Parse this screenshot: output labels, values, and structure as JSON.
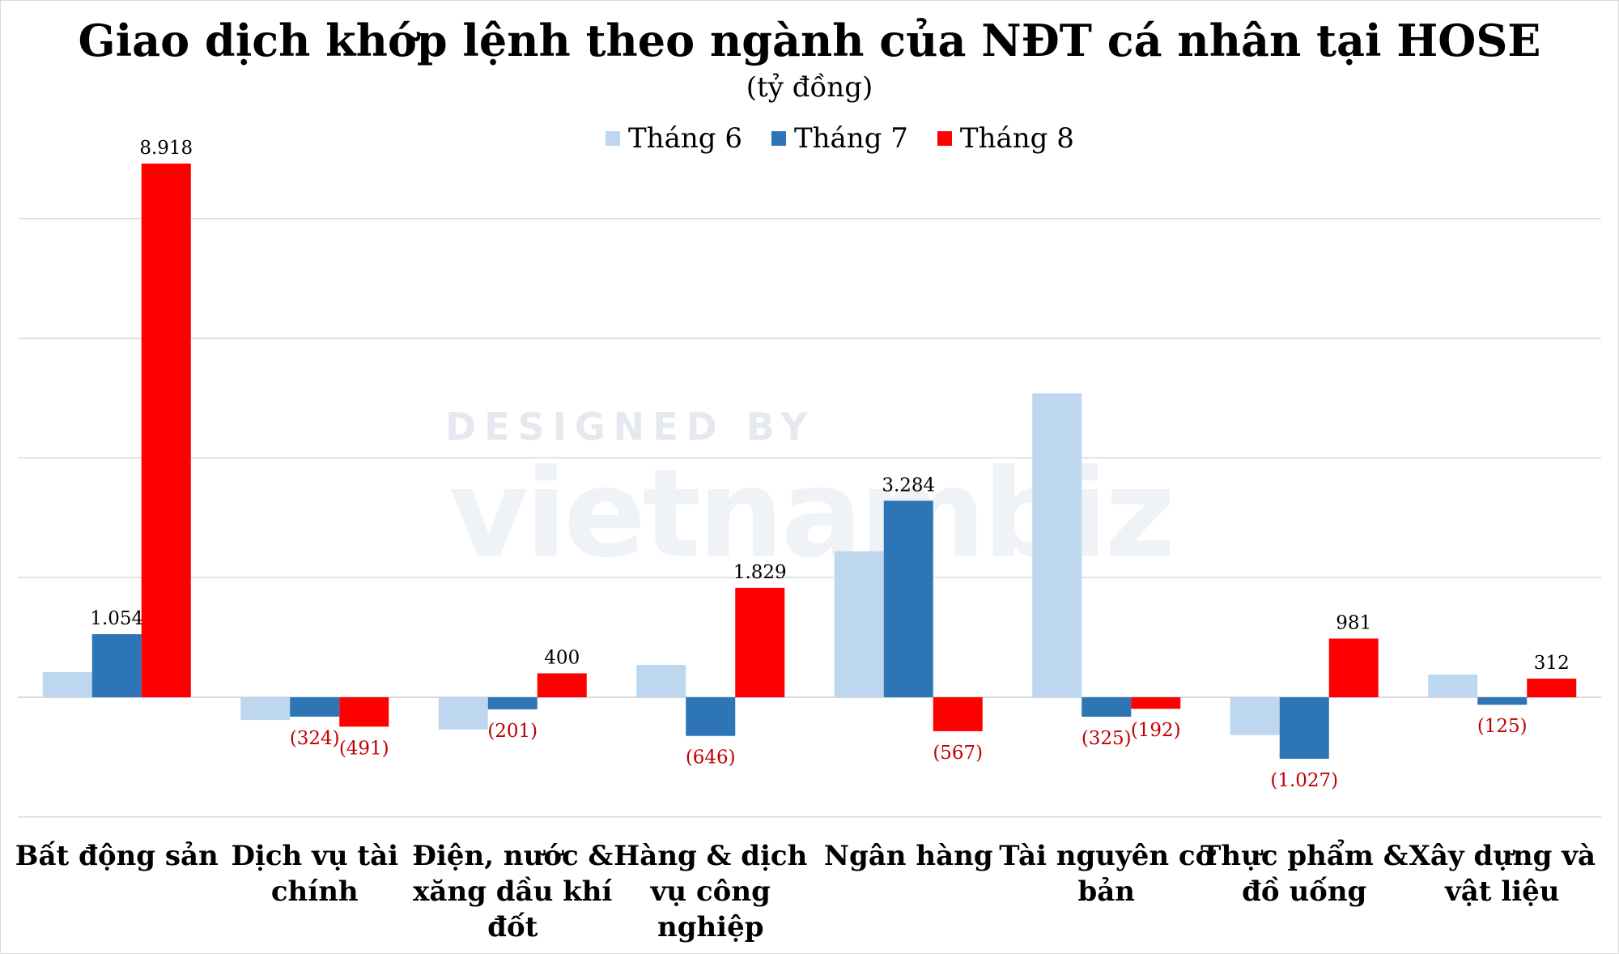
{
  "chart_data": {
    "type": "bar",
    "title": "Giao dịch khớp lệnh theo ngành của NĐT cá nhân tại HOSE",
    "subtitle": "(tỷ đồng)",
    "categories": [
      [
        "Bất động sản"
      ],
      [
        "Dịch vụ tài",
        "chính"
      ],
      [
        "Điện, nước &",
        "xăng dầu khí",
        "đốt"
      ],
      [
        "Hàng & dịch",
        "vụ công",
        "nghiệp"
      ],
      [
        "Ngân hàng"
      ],
      [
        "Tài nguyên cơ",
        "bản"
      ],
      [
        "Thực phẩm &",
        "đồ uống"
      ],
      [
        "Xây dựng và",
        "vật liệu"
      ]
    ],
    "series": [
      {
        "name": "Tháng 6",
        "color": "#bdd7ee",
        "values": [
          420,
          -380,
          -540,
          540,
          2440,
          5080,
          -630,
          380
        ],
        "labels": [
          null,
          null,
          null,
          null,
          null,
          null,
          null,
          null
        ]
      },
      {
        "name": "Tháng 7",
        "color": "#2e75b6",
        "values": [
          1054,
          -324,
          -201,
          -646,
          3284,
          -325,
          -1027,
          -125
        ],
        "labels": [
          "1.054",
          "(324)",
          "(201)",
          "(646)",
          "3.284",
          "(325)",
          "(1.027)",
          "(125)"
        ]
      },
      {
        "name": "Tháng 8",
        "color": "#ff0000",
        "values": [
          8918,
          -491,
          400,
          1829,
          -567,
          -192,
          981,
          312
        ],
        "labels": [
          "8.918",
          "(491)",
          "400",
          "1.829",
          "(567)",
          "(192)",
          "981",
          "312"
        ]
      }
    ],
    "ylim": [
      -2000,
      8918
    ],
    "gridlines": [
      -2000,
      2000,
      4000,
      6000,
      8000
    ],
    "grid": true,
    "legend": "top-center",
    "negative_label_color": "#c00000",
    "positive_label_color": "#000000"
  },
  "watermark": {
    "line1": "DESIGNED BY",
    "line2": "vietnambiz"
  }
}
